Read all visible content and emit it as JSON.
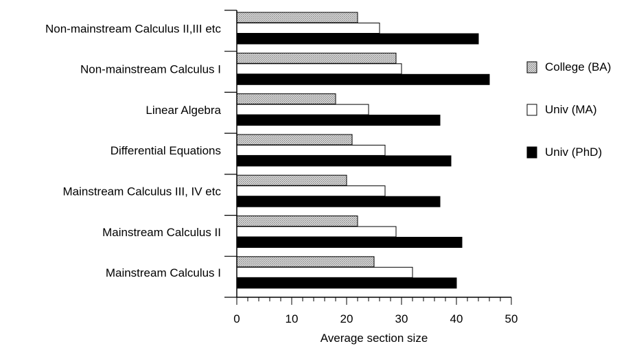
{
  "chart_data": {
    "type": "bar",
    "orientation": "horizontal",
    "categories": [
      "Non-mainstream Calculus II,III etc",
      "Non-mainstream Calculus I",
      "Linear Algebra",
      "Differential Equations",
      "Mainstream Calculus III, IV etc",
      "Mainstream Calculus II",
      "Mainstream Calculus I"
    ],
    "series": [
      {
        "name": "College (BA)",
        "values": [
          22,
          29,
          18,
          21,
          20,
          22,
          25
        ],
        "fill": "#c8c8c8"
      },
      {
        "name": "Univ (MA)",
        "values": [
          26,
          30,
          24,
          27,
          27,
          29,
          32
        ],
        "fill": "#ffffff"
      },
      {
        "name": "Univ (PhD)",
        "values": [
          44,
          46,
          37,
          39,
          37,
          41,
          40
        ],
        "fill": "#000000"
      }
    ],
    "xlabel": "Average section size",
    "xlim": [
      0,
      50
    ],
    "xticks": [
      "0",
      "10",
      "20",
      "30",
      "40",
      "50"
    ],
    "legend_position": "right",
    "grid": false
  }
}
